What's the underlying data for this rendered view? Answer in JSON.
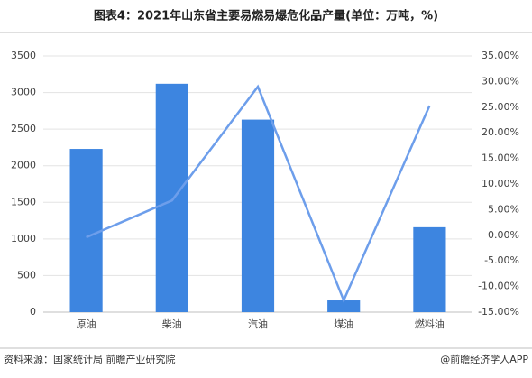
{
  "chart_data": {
    "type": "bar",
    "title": "图表4：2021年山东省主要易燃易爆危化品产量(单位：万吨，%)",
    "categories": [
      "原油",
      "柴油",
      "汽油",
      "煤油",
      "燃料油"
    ],
    "series": [
      {
        "type": "bar",
        "color": "#3d85e0",
        "values": [
          2230,
          3120,
          2630,
          160,
          1160
        ]
      },
      {
        "type": "line",
        "axis": "y2",
        "color": "#6d9eeb",
        "values": [
          -0.4,
          6.8,
          29.0,
          -12.7,
          25.3
        ]
      }
    ],
    "ylim": [
      0,
      3500
    ],
    "yticks": [
      0,
      500,
      1000,
      1500,
      2000,
      2500,
      3000,
      3500
    ],
    "y2lim": [
      -15,
      35
    ],
    "y2ticks": [
      {
        "value": -15,
        "label": "-15.00%"
      },
      {
        "value": -10,
        "label": "-10.00%"
      },
      {
        "value": -5,
        "label": "-5.00%"
      },
      {
        "value": 0,
        "label": "0.00%"
      },
      {
        "value": 5,
        "label": "5.00%"
      },
      {
        "value": 10,
        "label": "10.00%"
      },
      {
        "value": 15,
        "label": "15.00%"
      },
      {
        "value": 20,
        "label": "20.00%"
      },
      {
        "value": 25,
        "label": "25.00%"
      },
      {
        "value": 30,
        "label": "30.00%"
      },
      {
        "value": 35,
        "label": "35.00%"
      }
    ],
    "grid": true
  },
  "footer": {
    "source": "资料来源：国家统计局 前瞻产业研究院",
    "brand": "@前瞻经济学人APP"
  }
}
